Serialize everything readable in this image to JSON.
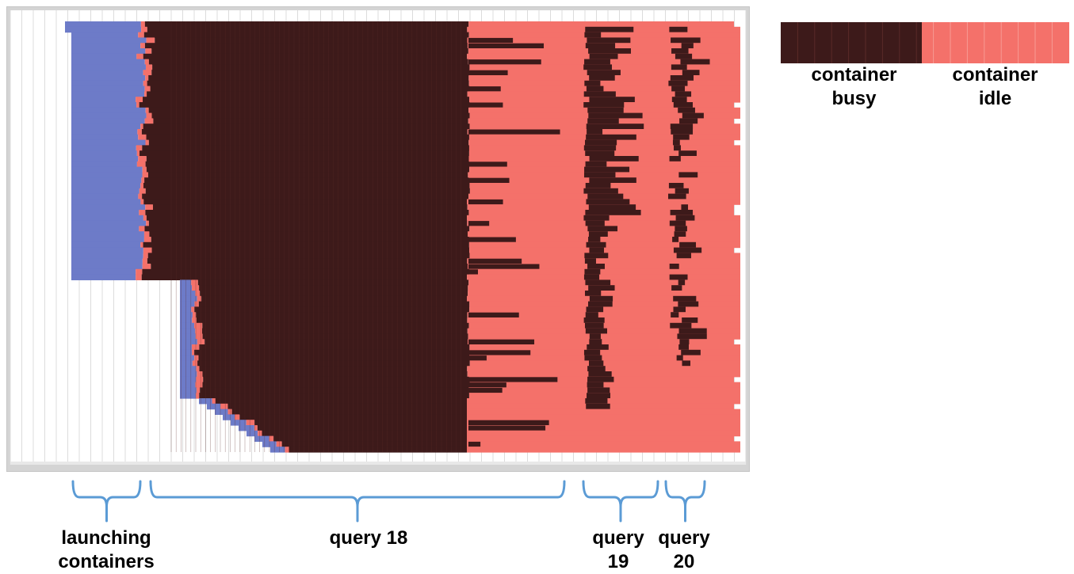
{
  "colors": {
    "busy": "#3d1a1a",
    "idle": "#f4716a",
    "launching": "#6d7bc8",
    "grid": "#dcdcdc",
    "brace": "#5b9bd5"
  },
  "legend": {
    "busy_label": "container busy",
    "idle_label": "container idle"
  },
  "phases": {
    "launching": "launching containers",
    "q18": "query 18",
    "q19": "query 19",
    "q20": "query 20"
  },
  "chart_data": {
    "type": "timeline",
    "rows": 80,
    "xlim": [
      0,
      64
    ],
    "series": [
      {
        "name": "container busy",
        "color": "#3d1a1a"
      },
      {
        "name": "container idle",
        "color": "#f4716a"
      }
    ],
    "phases": [
      {
        "name": "launching containers",
        "start": 5.5,
        "end": 11.5
      },
      {
        "name": "query 18",
        "start": 12.2,
        "end": 48.5
      },
      {
        "name": "query 19",
        "start": 50,
        "end": 56.5
      },
      {
        "name": "query 20",
        "start": 57,
        "end": 60.5
      }
    ]
  }
}
